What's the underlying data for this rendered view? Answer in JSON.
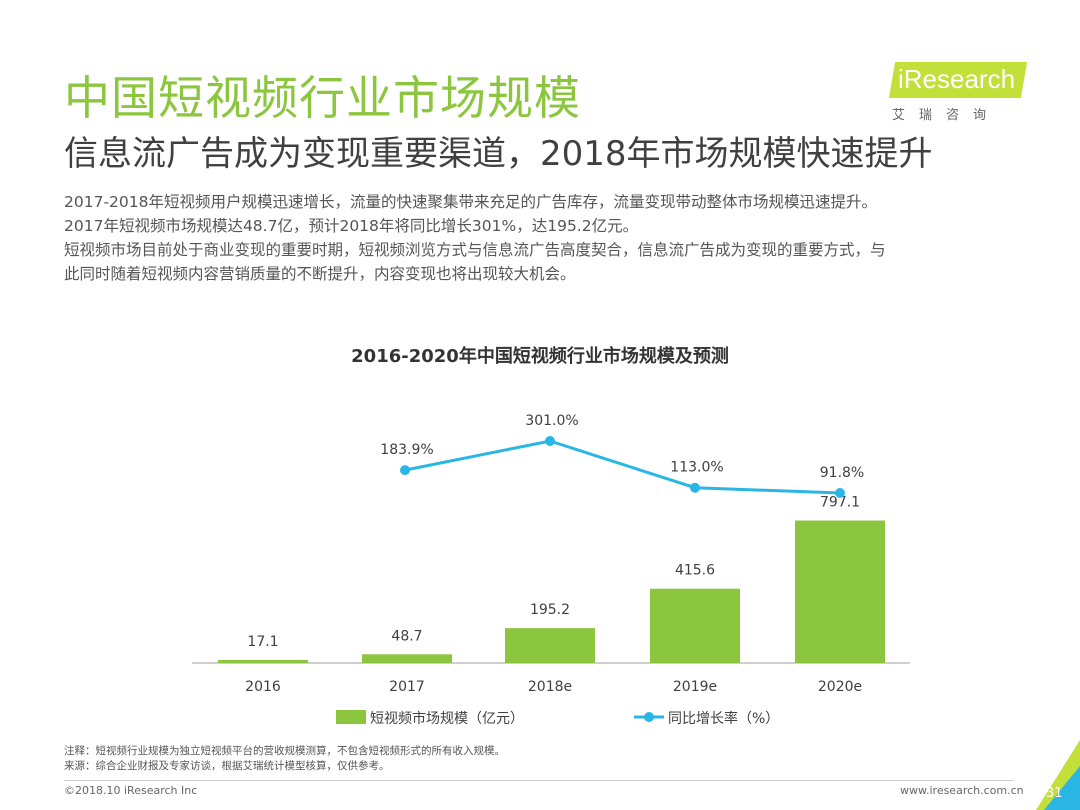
{
  "title": "中国短视频行业市场规模",
  "subtitle": "信息流广告成为变现重要渠道，2018年市场规模快速提升",
  "description": [
    "2017-2018年短视频用户规模迅速增长，流量的快速聚集带来充足的广告库存，流量变现带动整体市场规模迅速提升。",
    "2017年短视频市场规模达48.7亿，预计2018年将同比增长301%，达195.2亿元。",
    "短视频市场目前处于商业变现的重要时期，短视频浏览方式与信息流广告高度契合，信息流广告成为变现的重要方式，与",
    "此同时随着短视频内容营销质量的不断提升，内容变现也将出现较大机会。"
  ],
  "logo": {
    "text": "iResearch",
    "cn": "艾瑞咨询"
  },
  "chart_data": {
    "type": "bar",
    "title": "2016-2020年中国短视频行业市场规模及预测",
    "categories": [
      "2016",
      "2017",
      "2018e",
      "2019e",
      "2020e"
    ],
    "series": [
      {
        "name": "短视频市场规模（亿元）",
        "type": "bar",
        "color": "#8cc63f",
        "values": [
          17.1,
          48.7,
          195.2,
          415.6,
          797.1
        ],
        "labels": [
          "17.1",
          "48.7",
          "195.2",
          "415.6",
          "797.1"
        ]
      },
      {
        "name": "同比增长率（%）",
        "type": "line",
        "color": "#29b6e5",
        "values": [
          null,
          183.9,
          301.0,
          113.0,
          91.8
        ],
        "labels": [
          "",
          "183.9%",
          "301.0%",
          "113.0%",
          "91.8%"
        ]
      }
    ],
    "bar_ylim": [
      0,
      800
    ],
    "line_ylim": [
      0,
      310
    ],
    "grid": false,
    "legend_position": "bottom"
  },
  "notes": [
    "注释：短视频行业规模为独立短视频平台的营收规模测算，不包含短视频形式的所有收入规模。",
    "来源：综合企业财报及专家访谈，根据艾瑞统计模型核算，仅供参考。"
  ],
  "footer": {
    "left": "©2018.10 iResearch Inc",
    "right": "www.iresearch.com.cn",
    "page": "31"
  },
  "colors": {
    "accent": "#8cc63f",
    "line": "#29b6e5"
  }
}
